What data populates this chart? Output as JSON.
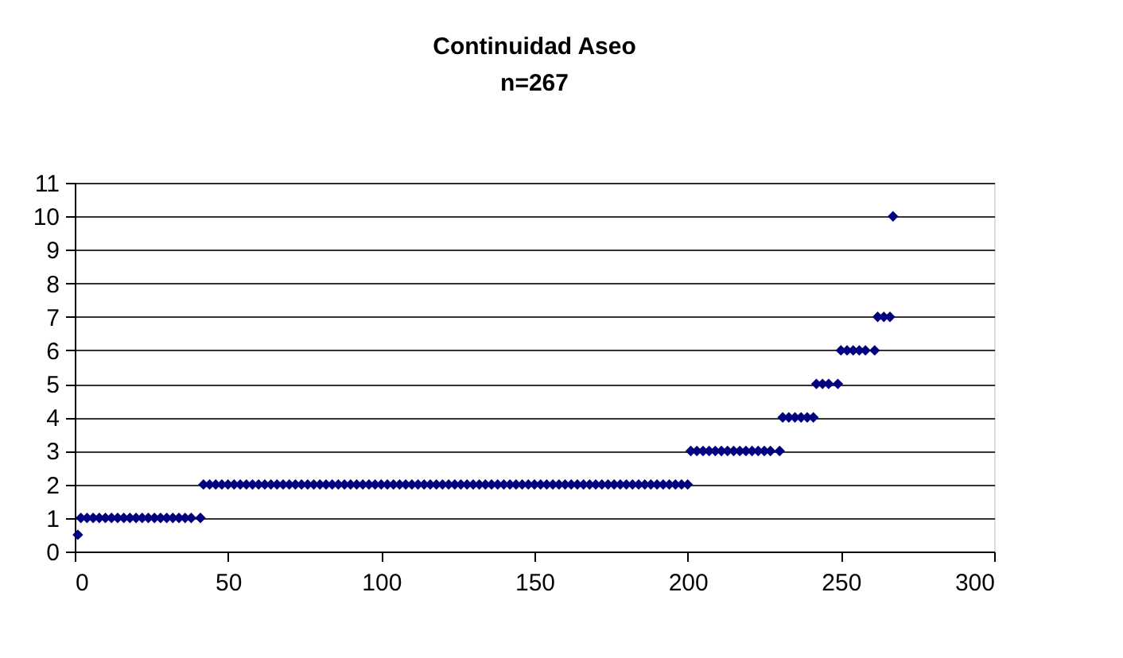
{
  "chart_data": {
    "type": "scatter",
    "title": "Continuidad Aseo",
    "subtitle": "n=267",
    "series": [
      {
        "color": "#000080",
        "x": [
          1
        ],
        "values": [
          0.5
        ]
      },
      {
        "color": "#000080",
        "x": [
          2,
          4,
          6,
          8,
          10,
          12,
          14,
          16,
          18,
          20,
          22,
          24,
          26,
          28,
          30,
          32,
          34,
          36,
          38,
          41
        ],
        "values": [
          1,
          1,
          1,
          1,
          1,
          1,
          1,
          1,
          1,
          1,
          1,
          1,
          1,
          1,
          1,
          1,
          1,
          1,
          1,
          1
        ]
      },
      {
        "color": "#000080",
        "x": [
          42,
          44,
          46,
          48,
          50,
          52,
          54,
          56,
          58,
          60,
          62,
          64,
          66,
          68,
          70,
          72,
          74,
          76,
          78,
          80,
          82,
          84,
          86,
          88,
          90,
          92,
          94,
          96,
          98,
          100,
          102,
          104,
          106,
          108,
          110,
          112,
          114,
          116,
          118,
          120,
          122,
          124,
          126,
          128,
          130,
          132,
          134,
          136,
          138,
          140,
          142,
          144,
          146,
          148,
          150,
          152,
          154,
          156,
          158,
          160,
          162,
          164,
          166,
          168,
          170,
          172,
          174,
          176,
          178,
          180,
          182,
          184,
          186,
          188,
          190,
          192,
          194,
          196,
          198,
          200
        ],
        "values": [
          2,
          2,
          2,
          2,
          2,
          2,
          2,
          2,
          2,
          2,
          2,
          2,
          2,
          2,
          2,
          2,
          2,
          2,
          2,
          2,
          2,
          2,
          2,
          2,
          2,
          2,
          2,
          2,
          2,
          2,
          2,
          2,
          2,
          2,
          2,
          2,
          2,
          2,
          2,
          2,
          2,
          2,
          2,
          2,
          2,
          2,
          2,
          2,
          2,
          2,
          2,
          2,
          2,
          2,
          2,
          2,
          2,
          2,
          2,
          2,
          2,
          2,
          2,
          2,
          2,
          2,
          2,
          2,
          2,
          2,
          2,
          2,
          2,
          2,
          2,
          2,
          2,
          2,
          2,
          2
        ]
      },
      {
        "color": "#000080",
        "x": [
          201,
          203,
          205,
          207,
          209,
          211,
          213,
          215,
          217,
          219,
          221,
          223,
          225,
          227,
          230
        ],
        "values": [
          3,
          3,
          3,
          3,
          3,
          3,
          3,
          3,
          3,
          3,
          3,
          3,
          3,
          3,
          3
        ]
      },
      {
        "color": "#000080",
        "x": [
          231,
          233,
          235,
          237,
          239,
          241
        ],
        "values": [
          4,
          4,
          4,
          4,
          4,
          4
        ]
      },
      {
        "color": "#000080",
        "x": [
          242,
          244,
          246,
          249
        ],
        "values": [
          5,
          5,
          5,
          5
        ]
      },
      {
        "color": "#000080",
        "x": [
          250,
          252,
          254,
          256,
          258,
          261
        ],
        "values": [
          6,
          6,
          6,
          6,
          6,
          6
        ]
      },
      {
        "color": "#000080",
        "x": [
          262,
          264,
          266
        ],
        "values": [
          7,
          7,
          7
        ]
      },
      {
        "color": "#000080",
        "x": [
          267
        ],
        "values": [
          10
        ]
      }
    ],
    "marker": "diamond",
    "xlim": [
      0,
      300
    ],
    "xticks": [
      0,
      50,
      100,
      150,
      200,
      250,
      300
    ],
    "ylim": [
      0,
      11
    ],
    "yticks": [
      0,
      1,
      2,
      3,
      4,
      5,
      6,
      7,
      8,
      9,
      10,
      11
    ],
    "grid": "y",
    "legend": false
  }
}
